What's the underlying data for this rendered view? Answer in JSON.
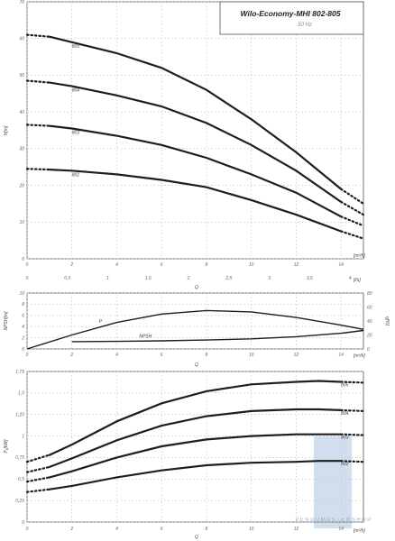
{
  "chart_data": [
    {
      "type": "line",
      "title": "Wilo-Economy-MHI 802-805",
      "subtitle": "50 Hz",
      "ylabel": "H[m]",
      "xlabel": "Q",
      "x_unit_primary": "[m³/h]",
      "x_unit_secondary": "[l/s]",
      "xlim": [
        0,
        15
      ],
      "ylim": [
        0,
        70
      ],
      "x_ticks": [
        "0",
        "2",
        "4",
        "6",
        "8",
        "10",
        "12",
        "14"
      ],
      "x_ticks_secondary": [
        "0",
        "0,5",
        "1",
        "1,5",
        "2",
        "2,5",
        "3",
        "3,5",
        "4"
      ],
      "y_ticks": [
        "0",
        "10",
        "20",
        "30",
        "40",
        "50",
        "60",
        "70"
      ],
      "grid": true,
      "series": [
        {
          "name": "805",
          "x": [
            0,
            1,
            2,
            4,
            6,
            8,
            10,
            12,
            14,
            15
          ],
          "values": [
            61,
            60.5,
            59,
            56,
            52,
            46,
            38,
            29,
            19,
            15
          ]
        },
        {
          "name": "804",
          "x": [
            0,
            1,
            2,
            4,
            6,
            8,
            10,
            12,
            14,
            15
          ],
          "values": [
            48.5,
            48,
            47,
            44.5,
            41.5,
            37,
            31,
            24,
            15.5,
            12
          ]
        },
        {
          "name": "803",
          "x": [
            0,
            1,
            2,
            4,
            6,
            8,
            10,
            12,
            14,
            15
          ],
          "values": [
            36.5,
            36.2,
            35.5,
            33.5,
            31,
            27.5,
            23,
            18,
            11.5,
            9
          ]
        },
        {
          "name": "802",
          "x": [
            0,
            1,
            2,
            4,
            6,
            8,
            10,
            12,
            14,
            15
          ],
          "values": [
            24.5,
            24.3,
            24,
            23,
            21.5,
            19.5,
            16,
            12,
            7.5,
            5.5
          ]
        }
      ]
    },
    {
      "type": "line",
      "ylabel": "NPSH[m]",
      "ylabel_right": "η[%]",
      "xlabel": "Q",
      "x_unit": "[m³/h]",
      "xlim": [
        0,
        15
      ],
      "ylim": [
        0,
        10
      ],
      "ylim_right": [
        0,
        80
      ],
      "x_ticks": [
        "0",
        "2",
        "4",
        "6",
        "8",
        "10",
        "12",
        "14"
      ],
      "y_ticks": [
        "0",
        "2",
        "4",
        "6",
        "8",
        "10"
      ],
      "y_ticks_right": [
        "0",
        "20",
        "40",
        "60",
        "80"
      ],
      "grid": true,
      "series": [
        {
          "name": "P",
          "axis": "right",
          "x": [
            0,
            2,
            4,
            6,
            8,
            10,
            12,
            14,
            15
          ],
          "values": [
            0,
            20,
            38,
            50,
            55,
            53,
            45,
            34,
            28
          ]
        },
        {
          "name": "NPSH",
          "axis": "left",
          "x": [
            2,
            4,
            6,
            8,
            10,
            12,
            14,
            15
          ],
          "values": [
            1.3,
            1.35,
            1.45,
            1.6,
            1.8,
            2.2,
            2.8,
            3.3
          ]
        }
      ]
    },
    {
      "type": "line",
      "ylabel": "P₁[kW]",
      "xlabel": "Q",
      "x_unit": "[m³/h]",
      "xlim": [
        0,
        15
      ],
      "ylim": [
        0,
        1.75
      ],
      "x_ticks": [
        "0",
        "2",
        "4",
        "6",
        "8",
        "10",
        "12",
        "14"
      ],
      "y_ticks": [
        "0",
        "0,25",
        "0,5",
        "0,75",
        "1",
        "1,25",
        "1,5",
        "1,75"
      ],
      "grid": true,
      "series": [
        {
          "name": "805",
          "x": [
            0,
            1,
            2,
            4,
            6,
            8,
            10,
            12,
            13,
            14,
            15
          ],
          "values": [
            0.7,
            0.78,
            0.9,
            1.17,
            1.38,
            1.52,
            1.6,
            1.63,
            1.64,
            1.63,
            1.62
          ]
        },
        {
          "name": "804",
          "x": [
            0,
            1,
            2,
            4,
            6,
            8,
            10,
            12,
            13,
            14,
            15
          ],
          "values": [
            0.58,
            0.64,
            0.74,
            0.95,
            1.12,
            1.23,
            1.29,
            1.31,
            1.31,
            1.3,
            1.29
          ]
        },
        {
          "name": "803",
          "x": [
            0,
            1,
            2,
            4,
            6,
            8,
            10,
            12,
            13,
            14,
            15
          ],
          "values": [
            0.47,
            0.52,
            0.59,
            0.75,
            0.88,
            0.96,
            1.0,
            1.02,
            1.02,
            1.02,
            1.01
          ]
        },
        {
          "name": "802",
          "x": [
            0,
            1,
            2,
            4,
            6,
            8,
            10,
            12,
            13,
            14,
            15
          ],
          "values": [
            0.35,
            0.38,
            0.42,
            0.52,
            0.6,
            0.66,
            0.69,
            0.7,
            0.71,
            0.71,
            0.7
          ]
        }
      ]
    }
  ],
  "watermark": "VENDUMASTERSHOP"
}
